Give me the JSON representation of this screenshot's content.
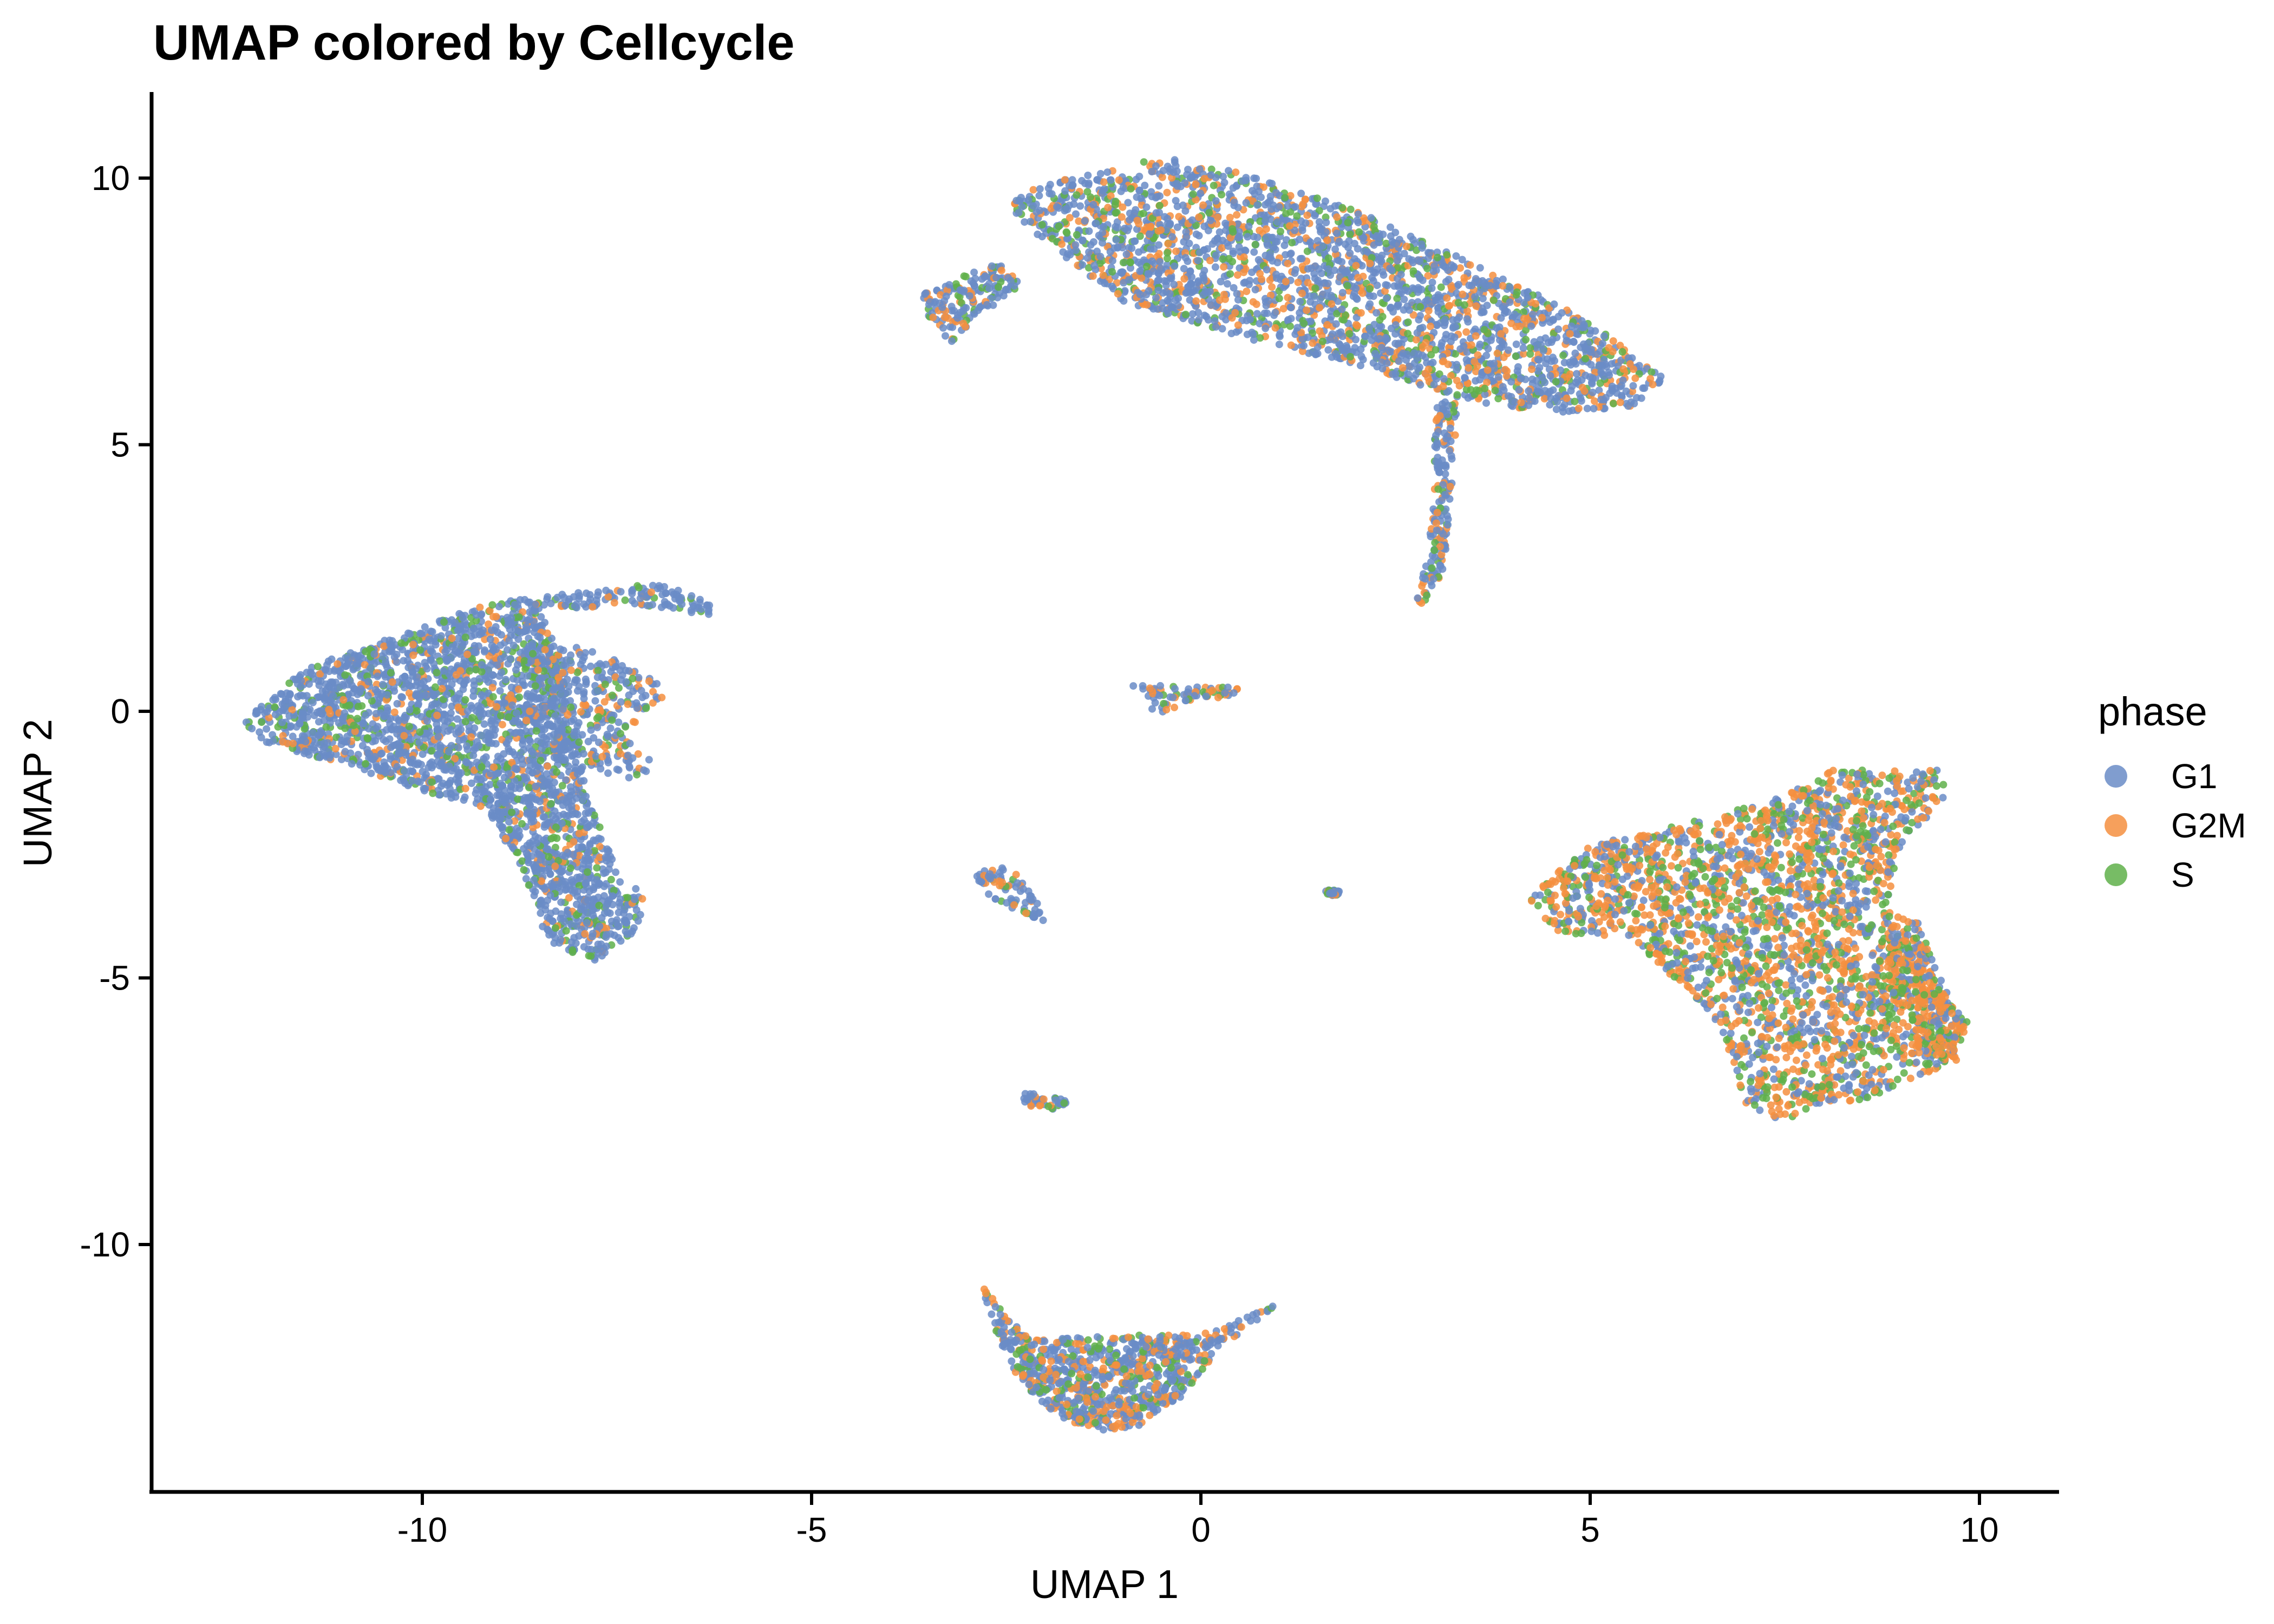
{
  "chart_data": {
    "type": "scatter",
    "title": "UMAP colored by Cellcycle",
    "xlabel": "UMAP 1",
    "ylabel": "UMAP 2",
    "xlim": [
      -13.5,
      11.0
    ],
    "ylim": [
      -14.5,
      11.6
    ],
    "x_ticks": [
      -10,
      -5,
      0,
      5,
      10
    ],
    "x_tick_labels": [
      "-10",
      "-5",
      "0",
      "5",
      "10"
    ],
    "y_ticks": [
      10,
      5,
      0,
      -5,
      -10
    ],
    "y_tick_labels": [
      "10",
      "5",
      "0",
      "-5",
      "-10"
    ],
    "grid": false,
    "legend": {
      "title": "phase",
      "placement": "right",
      "entries": [
        {
          "label": "G1",
          "color": "#6a8cc7"
        },
        {
          "label": "G2M",
          "color": "#f58f3f"
        },
        {
          "label": "S",
          "color": "#5fb04a"
        }
      ]
    },
    "clusters": [
      {
        "region": "top",
        "polygon": [
          [
            -2.5,
            9.6
          ],
          [
            -2.0,
            9.9
          ],
          [
            -1.0,
            10.2
          ],
          [
            -0.5,
            10.4
          ],
          [
            0.5,
            10.1
          ],
          [
            2.0,
            9.4
          ],
          [
            3.5,
            8.4
          ],
          [
            4.5,
            7.7
          ],
          [
            5.3,
            7.0
          ],
          [
            6.0,
            6.2
          ],
          [
            5.5,
            5.7
          ],
          [
            4.5,
            5.6
          ],
          [
            3.5,
            5.8
          ],
          [
            2.0,
            6.5
          ],
          [
            0.5,
            7.0
          ],
          [
            -1.0,
            7.7
          ],
          [
            -2.0,
            8.8
          ],
          [
            -2.4,
            9.3
          ]
        ],
        "mix": {
          "G1": 0.62,
          "G2M": 0.23,
          "S": 0.15
        }
      },
      {
        "region": "top-left spur",
        "polygon": [
          [
            -3.6,
            7.8
          ],
          [
            -3.0,
            8.2
          ],
          [
            -2.6,
            8.4
          ],
          [
            -2.3,
            8.0
          ],
          [
            -2.9,
            7.3
          ],
          [
            -3.2,
            6.9
          ],
          [
            -3.5,
            7.4
          ]
        ],
        "mix": {
          "G1": 0.68,
          "G2M": 0.18,
          "S": 0.14
        }
      },
      {
        "region": "top stalk",
        "polygon": [
          [
            3.05,
            5.8
          ],
          [
            3.3,
            5.8
          ],
          [
            3.2,
            3.5
          ],
          [
            3.1,
            2.6
          ],
          [
            2.9,
            2.0
          ],
          [
            2.75,
            2.0
          ],
          [
            2.9,
            2.8
          ],
          [
            3.0,
            4.2
          ],
          [
            3.0,
            5.4
          ]
        ],
        "mix": {
          "G1": 0.55,
          "G2M": 0.25,
          "S": 0.2
        }
      },
      {
        "region": "left",
        "polygon": [
          [
            -12.3,
            -0.2
          ],
          [
            -11.5,
            0.8
          ],
          [
            -10.0,
            1.6
          ],
          [
            -9.0,
            2.1
          ],
          [
            -8.5,
            2.0
          ],
          [
            -8.2,
            1.0
          ],
          [
            -8.0,
            -0.5
          ],
          [
            -7.9,
            -1.5
          ],
          [
            -7.5,
            -3.0
          ],
          [
            -7.1,
            -3.5
          ],
          [
            -7.3,
            -4.2
          ],
          [
            -7.8,
            -4.7
          ],
          [
            -8.4,
            -4.3
          ],
          [
            -8.7,
            -3.0
          ],
          [
            -9.2,
            -1.8
          ],
          [
            -10.0,
            -1.5
          ],
          [
            -11.0,
            -1.0
          ],
          [
            -12.0,
            -0.6
          ]
        ],
        "mix": {
          "G1": 0.75,
          "G2M": 0.1,
          "S": 0.15
        }
      },
      {
        "region": "left arm",
        "polygon": [
          [
            -8.8,
            2.1
          ],
          [
            -7.5,
            2.3
          ],
          [
            -7.0,
            2.4
          ],
          [
            -6.3,
            2.1
          ],
          [
            -6.3,
            1.8
          ],
          [
            -7.2,
            2.0
          ],
          [
            -8.5,
            1.9
          ]
        ],
        "mix": {
          "G1": 0.8,
          "G2M": 0.08,
          "S": 0.12
        }
      },
      {
        "region": "left mid",
        "polygon": [
          [
            -8.7,
            1.2
          ],
          [
            -7.8,
            1.2
          ],
          [
            -7.0,
            0.6
          ],
          [
            -6.9,
            0.2
          ],
          [
            -7.4,
            -0.5
          ],
          [
            -7.0,
            -1.0
          ],
          [
            -7.3,
            -1.3
          ],
          [
            -8.1,
            -1.0
          ],
          [
            -8.7,
            -0.2
          ]
        ],
        "mix": {
          "G1": 0.7,
          "G2M": 0.15,
          "S": 0.15
        }
      },
      {
        "region": "center small",
        "polygon": [
          [
            -0.9,
            0.5
          ],
          [
            0.5,
            0.45
          ],
          [
            0.4,
            0.3
          ],
          [
            -0.2,
            0.1
          ],
          [
            -0.6,
            -0.1
          ],
          [
            -0.7,
            0.3
          ]
        ],
        "mix": {
          "G1": 0.55,
          "G2M": 0.3,
          "S": 0.15
        }
      },
      {
        "region": "mid-left blob",
        "polygon": [
          [
            -2.9,
            -3.0
          ],
          [
            -2.4,
            -2.9
          ],
          [
            -2.1,
            -3.6
          ],
          [
            -2.0,
            -3.95
          ],
          [
            -2.3,
            -3.8
          ],
          [
            -2.8,
            -3.4
          ]
        ],
        "mix": {
          "G1": 0.65,
          "G2M": 0.25,
          "S": 0.1
        }
      },
      {
        "region": "tiny",
        "polygon": [
          [
            1.6,
            -3.35
          ],
          [
            1.8,
            -3.35
          ],
          [
            1.75,
            -3.45
          ],
          [
            1.62,
            -3.45
          ]
        ],
        "mix": {
          "G1": 0.7,
          "G2M": 0.1,
          "S": 0.2
        }
      },
      {
        "region": "lower small",
        "polygon": [
          [
            -2.3,
            -7.1
          ],
          [
            -2.0,
            -7.2
          ],
          [
            -1.7,
            -7.3
          ],
          [
            -1.8,
            -7.45
          ],
          [
            -2.1,
            -7.5
          ],
          [
            -2.3,
            -7.3
          ]
        ],
        "mix": {
          "G1": 0.6,
          "G2M": 0.25,
          "S": 0.15
        }
      },
      {
        "region": "bottom",
        "polygon": [
          [
            -2.8,
            -10.8
          ],
          [
            -2.2,
            -11.8
          ],
          [
            -1.0,
            -11.7
          ],
          [
            0.0,
            -11.7
          ],
          [
            1.0,
            -11.1
          ],
          [
            0.2,
            -12.0
          ],
          [
            -0.2,
            -12.8
          ],
          [
            -0.8,
            -13.4
          ],
          [
            -1.3,
            -13.5
          ],
          [
            -1.9,
            -13.2
          ],
          [
            -2.4,
            -12.4
          ],
          [
            -2.7,
            -11.4
          ]
        ],
        "mix": {
          "G1": 0.58,
          "G2M": 0.25,
          "S": 0.17
        }
      },
      {
        "region": "right",
        "polygon": [
          [
            4.2,
            -3.5
          ],
          [
            5.0,
            -2.5
          ],
          [
            6.5,
            -2.0
          ],
          [
            7.5,
            -1.6
          ],
          [
            8.0,
            -1.1
          ],
          [
            8.8,
            -1.1
          ],
          [
            9.5,
            -1.1
          ],
          [
            9.6,
            -1.6
          ],
          [
            9.0,
            -2.5
          ],
          [
            8.8,
            -3.8
          ],
          [
            9.3,
            -4.5
          ],
          [
            9.8,
            -5.8
          ],
          [
            9.7,
            -6.5
          ],
          [
            8.8,
            -7.2
          ],
          [
            7.7,
            -7.5
          ],
          [
            7.5,
            -7.7
          ],
          [
            7.0,
            -7.4
          ],
          [
            6.7,
            -6.0
          ],
          [
            5.5,
            -4.2
          ],
          [
            4.6,
            -4.2
          ]
        ],
        "mix": {
          "G1": 0.3,
          "G2M": 0.45,
          "S": 0.25
        }
      },
      {
        "region": "right outer arm",
        "polygon": [
          [
            8.8,
            -3.7
          ],
          [
            9.2,
            -3.9
          ],
          [
            9.6,
            -5.5
          ],
          [
            9.85,
            -5.8
          ],
          [
            9.7,
            -6.6
          ],
          [
            9.2,
            -6.4
          ],
          [
            8.8,
            -5.0
          ]
        ],
        "mix": {
          "G1": 0.2,
          "G2M": 0.6,
          "S": 0.2
        }
      }
    ]
  }
}
